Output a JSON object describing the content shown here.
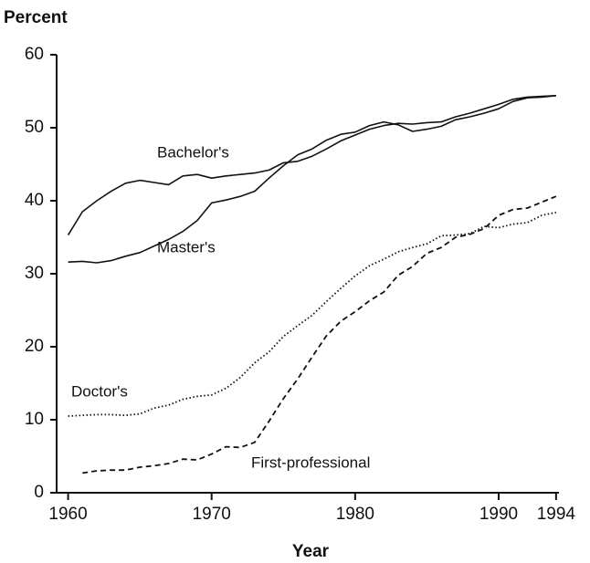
{
  "chart_data": {
    "type": "line",
    "title": "Percent",
    "x_label": "Year",
    "x": [
      1960,
      1961,
      1962,
      1963,
      1964,
      1965,
      1966,
      1967,
      1968,
      1969,
      1970,
      1971,
      1972,
      1973,
      1974,
      1975,
      1976,
      1977,
      1978,
      1979,
      1980,
      1981,
      1982,
      1983,
      1984,
      1985,
      1986,
      1987,
      1988,
      1989,
      1990,
      1991,
      1992,
      1993,
      1994
    ],
    "series": [
      {
        "name": "Bachelor's",
        "color": "#111111",
        "style": "solid",
        "values": [
          35.3,
          38.5,
          40,
          41.3,
          42.4,
          42.8,
          42.5,
          42.2,
          43.4,
          43.6,
          43.1,
          43.4,
          43.6,
          43.8,
          44.2,
          45.2,
          45.4,
          46.1,
          47.1,
          48.2,
          49.0,
          49.8,
          50.3,
          50.6,
          50.5,
          50.7,
          50.8,
          51.5,
          52.0,
          52.6,
          53.2,
          53.9,
          54.2,
          54.3,
          54.4
        ]
      },
      {
        "name": "Master's",
        "color": "#111111",
        "style": "solid",
        "values": [
          31.6,
          31.7,
          31.5,
          31.8,
          32.4,
          32.9,
          33.8,
          34.7,
          35.8,
          37.3,
          39.7,
          40.1,
          40.6,
          41.3,
          43.1,
          44.8,
          46.3,
          47.1,
          48.3,
          49.1,
          49.4,
          50.3,
          50.8,
          50.4,
          49.5,
          49.8,
          50.2,
          51.1,
          51.5,
          52.0,
          52.6,
          53.6,
          54.1,
          54.2,
          54.4
        ]
      },
      {
        "name": "Doctor's",
        "color": "#111111",
        "style": "dotted",
        "values": [
          10.5,
          10.6,
          10.7,
          10.7,
          10.6,
          10.8,
          11.6,
          12.0,
          12.8,
          13.2,
          13.4,
          14.3,
          15.8,
          17.8,
          19.3,
          21.4,
          22.9,
          24.3,
          26.2,
          28.0,
          29.7,
          31.1,
          32.0,
          33.0,
          33.6,
          34.1,
          35.2,
          35.3,
          35.5,
          36.5,
          36.3,
          36.8,
          37.0,
          38.0,
          38.4
        ]
      },
      {
        "name": "First-professional",
        "color": "#111111",
        "style": "dashed",
        "values": [
          null,
          2.7,
          3.0,
          3.1,
          3.1,
          3.5,
          3.7,
          4.0,
          4.6,
          4.5,
          5.3,
          6.3,
          6.2,
          6.9,
          9.8,
          12.9,
          15.6,
          18.6,
          21.5,
          23.5,
          24.8,
          26.3,
          27.5,
          29.8,
          31.0,
          32.8,
          33.6,
          35.0,
          35.4,
          36.2,
          38.0,
          38.8,
          39.0,
          39.8,
          40.6
        ]
      }
    ],
    "xlim": [
      1959.2,
      1994.2
    ],
    "xticks": [
      1960,
      1970,
      1980,
      1990,
      1994
    ],
    "ylim": [
      0,
      60
    ],
    "yticks": [
      0,
      10,
      20,
      30,
      40,
      50,
      60
    ],
    "grid": false
  }
}
